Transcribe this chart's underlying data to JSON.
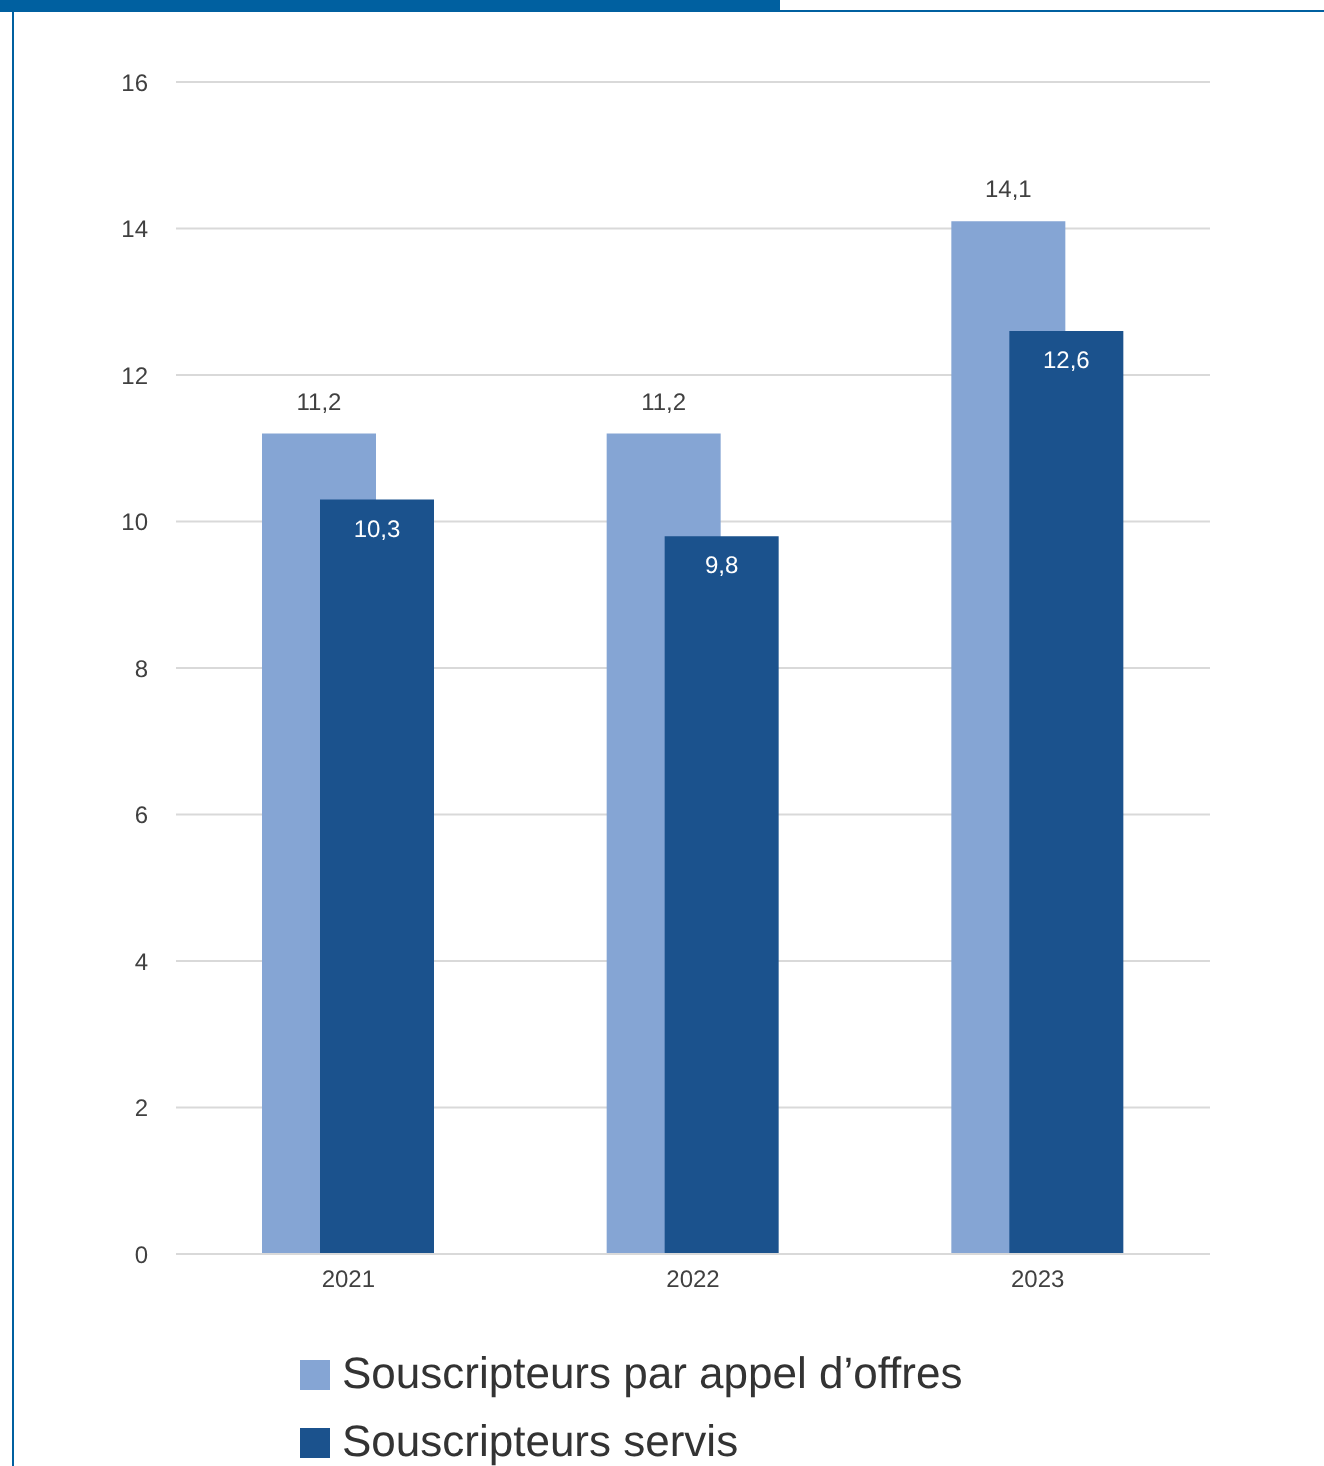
{
  "chart_data": {
    "type": "bar",
    "categories": [
      "2021",
      "2022",
      "2023"
    ],
    "series": [
      {
        "name": "Souscripteurs par appel d’offres",
        "color": "#85a5d4",
        "values": [
          11.2,
          11.2,
          14.1
        ],
        "value_labels": [
          "11,2",
          "11,2",
          "14,1"
        ]
      },
      {
        "name": "Souscripteurs servis",
        "color": "#1b528d",
        "values": [
          10.3,
          9.8,
          12.6
        ],
        "value_labels": [
          "10,3",
          "9,8",
          "12,6"
        ]
      }
    ],
    "ylim": [
      0,
      16
    ],
    "yticks": [
      0,
      2,
      4,
      6,
      8,
      10,
      12,
      14,
      16
    ],
    "grid": "y",
    "legend": "bottom"
  }
}
